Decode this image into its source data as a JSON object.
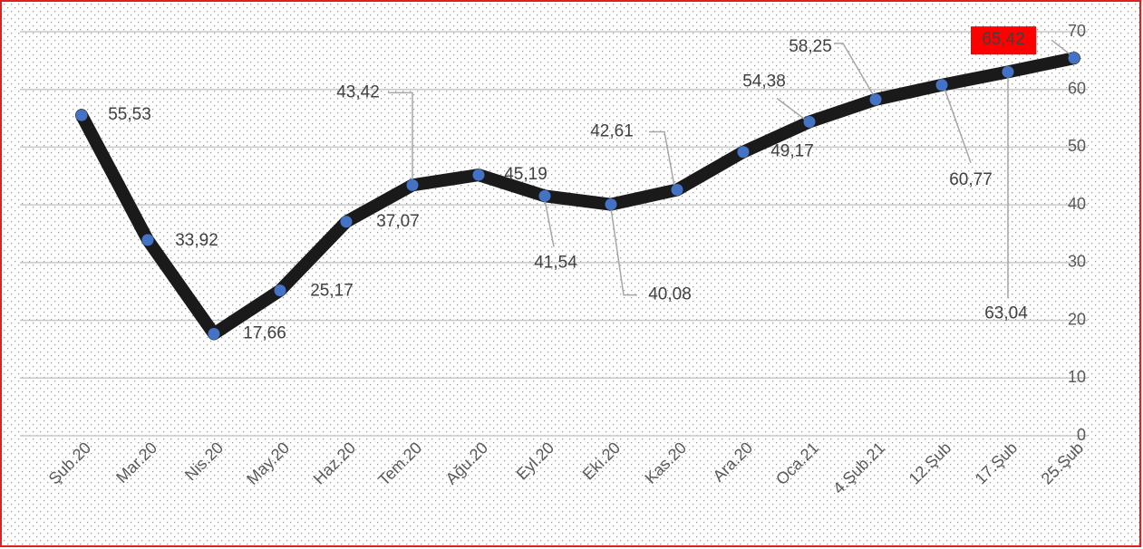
{
  "chart_data": {
    "type": "line",
    "categories": [
      "Şub.20",
      "Mar.20",
      "Nis.20",
      "May.20",
      "Haz.20",
      "Tem.20",
      "Ağu.20",
      "Eyl.20",
      "Eki.20",
      "Kas.20",
      "Ara.20",
      "Oca.21",
      "4.Şub.21",
      "12.Şub",
      "17.Şub",
      "25.Şub"
    ],
    "series": [
      {
        "color": "#1a1a1a",
        "marker_color": "#4472c4",
        "values": [
          55.53,
          33.92,
          17.66,
          25.17,
          37.07,
          43.42,
          45.19,
          41.54,
          40.08,
          42.61,
          49.17,
          54.38,
          58.25,
          60.77,
          63.04,
          65.42
        ],
        "value_labels": [
          "55,53",
          "33,92",
          "17,66",
          "25,17",
          "37,07",
          "43,42",
          "45,19",
          "41,54",
          "40,08",
          "42,61",
          "49,17",
          "54,38",
          "58,25",
          "60,77",
          "63,04",
          "65,42"
        ]
      }
    ],
    "ylim": [
      0,
      70
    ],
    "yticks": [
      0,
      10,
      20,
      30,
      40,
      50,
      60,
      70
    ],
    "grid": true,
    "highlight_color": "#ff0000"
  }
}
